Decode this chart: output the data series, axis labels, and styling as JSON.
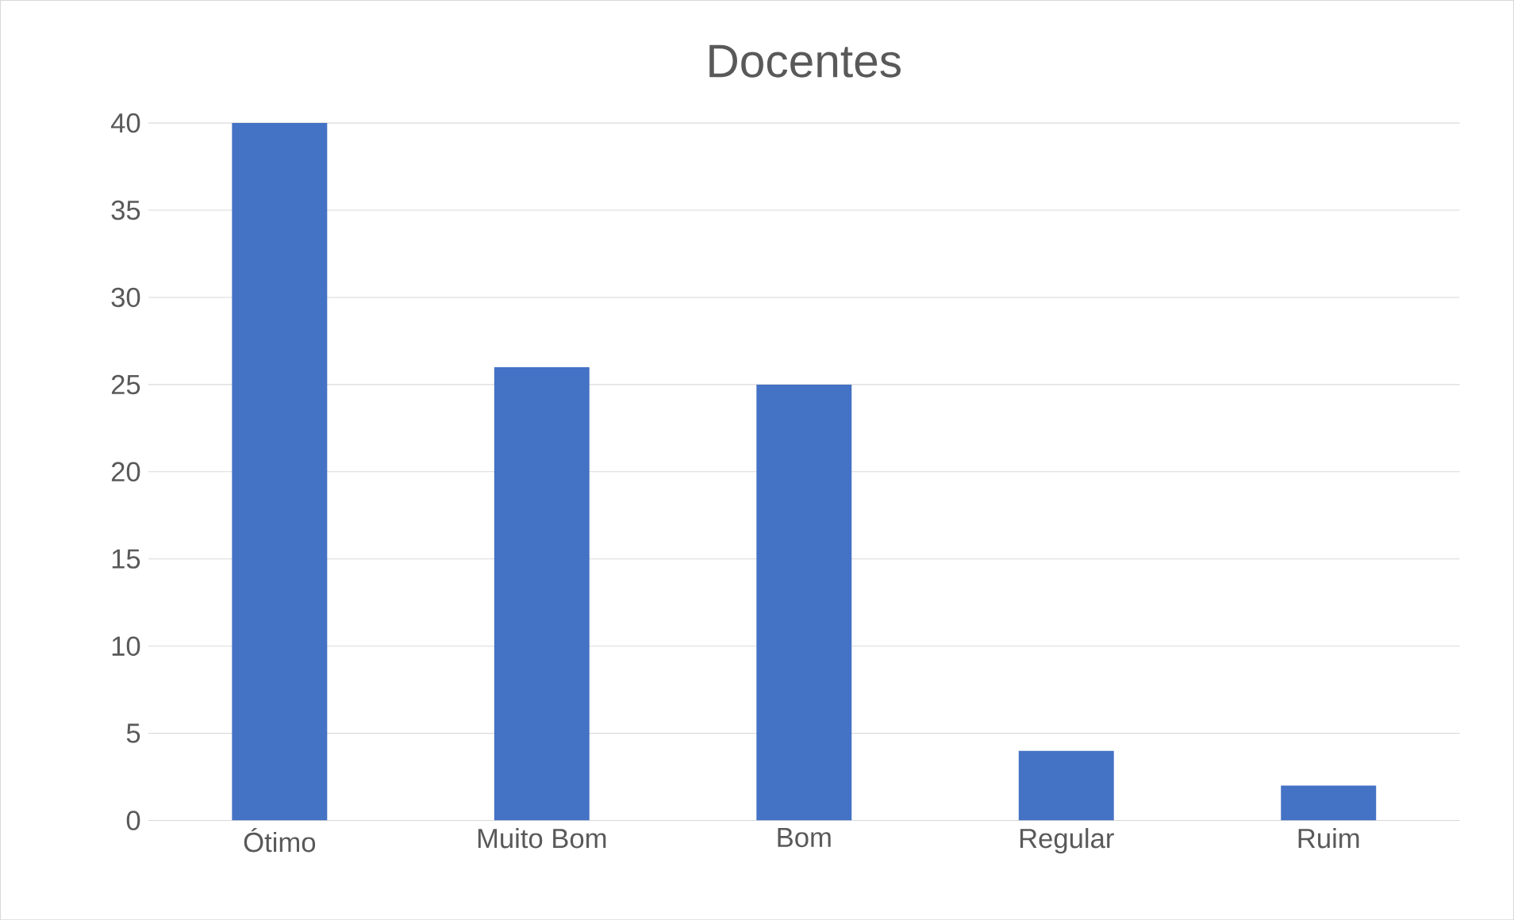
{
  "chart_data": {
    "type": "bar",
    "title": "Docentes",
    "categories": [
      "Ótimo",
      "Muito Bom",
      "Bom",
      "Regular",
      "Ruim"
    ],
    "values": [
      40,
      26,
      25,
      4,
      2
    ],
    "color": "#4472c4",
    "ylim": [
      0,
      40
    ],
    "yticks": [
      0,
      5,
      10,
      15,
      20,
      25,
      30,
      35,
      40
    ],
    "grid": "y"
  }
}
